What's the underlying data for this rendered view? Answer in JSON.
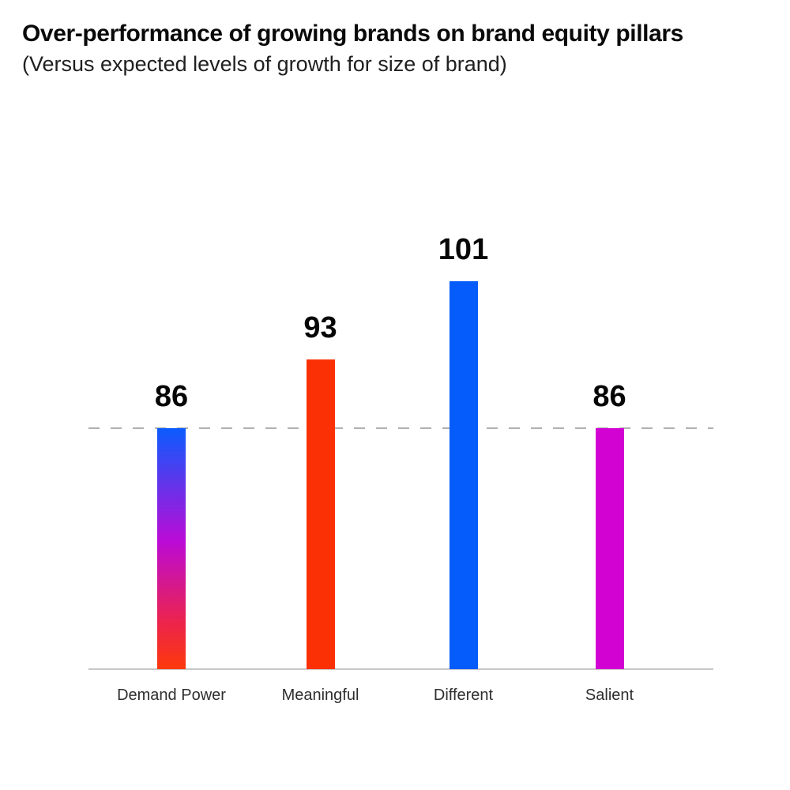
{
  "header": {
    "title": "Over-performance of growing brands on brand equity pillars",
    "subtitle": "(Versus expected levels of growth for size of brand)"
  },
  "chart_data": {
    "type": "bar",
    "title": "Over-performance of growing brands on brand equity pillars",
    "subtitle": "(Versus expected levels of growth for size of brand)",
    "categories": [
      "Demand Power",
      "Meaningful",
      "Different",
      "Salient"
    ],
    "values": [
      86,
      93,
      101,
      86
    ],
    "value_labels": [
      "86",
      "93",
      "101",
      "86"
    ],
    "xlabel": "",
    "ylabel": "",
    "grid": false,
    "y_axis_visible": false,
    "legend": "none",
    "ylim_implied": [
      61.4,
      110
    ],
    "reference_line": {
      "value": 86,
      "style": "dashed",
      "color": "#b0b0b0"
    },
    "axis_line_color": "#c8c8c8",
    "value_label_color": "#060606",
    "category_label_color": "#2e2e2e",
    "bar_fills": [
      {
        "type": "gradient",
        "direction": "top-to-bottom",
        "stops": [
          {
            "color": "#0b5cfe",
            "pct": 0
          },
          {
            "color": "#bb0bd6",
            "pct": 47
          },
          {
            "color": "#ee2547",
            "pct": 82
          },
          {
            "color": "#fc390b",
            "pct": 100
          }
        ]
      },
      {
        "type": "solid",
        "color": "#fb3105"
      },
      {
        "type": "solid",
        "color": "#055cfa"
      },
      {
        "type": "solid",
        "color": "#d203d2"
      }
    ]
  }
}
